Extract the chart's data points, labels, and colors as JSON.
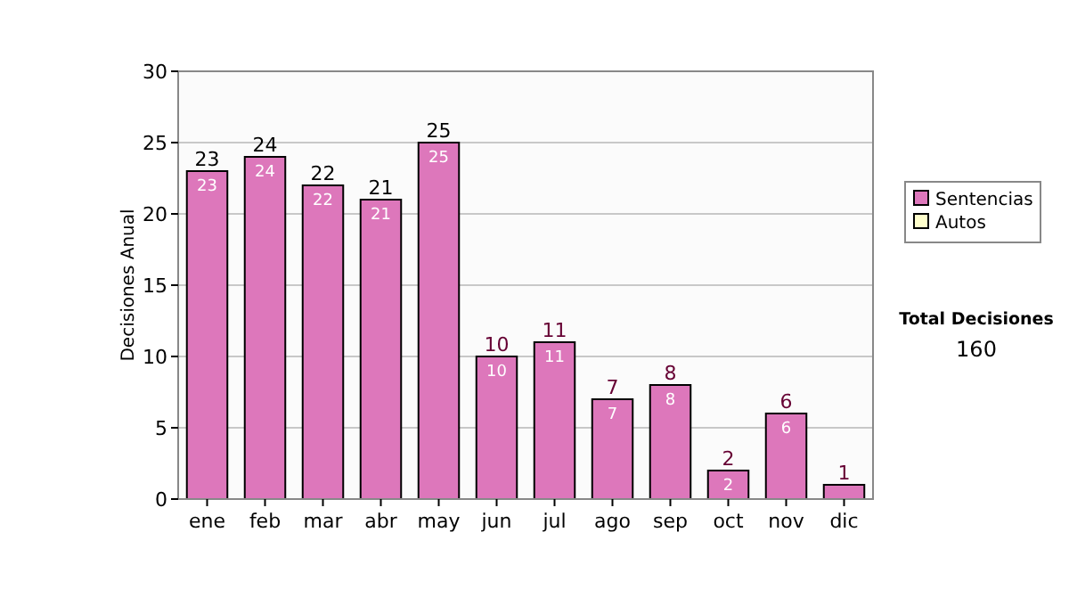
{
  "chart_data": {
    "type": "bar",
    "stacked": true,
    "ylabel": "Decisiones Anual",
    "categories": [
      "ene",
      "feb",
      "mar",
      "abr",
      "may",
      "jun",
      "jul",
      "ago",
      "sep",
      "oct",
      "nov",
      "dic"
    ],
    "series": [
      {
        "name": "Sentencias",
        "color": "#dd77bb",
        "values": [
          23,
          24,
          22,
          21,
          25,
          10,
          11,
          7,
          8,
          2,
          6,
          1
        ],
        "value_labels": [
          "23",
          "24",
          "22",
          "21",
          "25",
          "10",
          "11",
          "7",
          "8",
          "2",
          "6",
          null
        ]
      },
      {
        "name": "Autos",
        "color": "#ffffcc",
        "values": [
          0,
          0,
          0,
          0,
          0,
          0,
          0,
          0,
          0,
          0,
          0,
          0
        ]
      }
    ],
    "totals": [
      "23",
      "24",
      "22",
      "21",
      "25",
      "10",
      "11",
      "7",
      "8",
      "2",
      "6",
      "1"
    ],
    "ylim": [
      0,
      30
    ],
    "yticks": [
      0,
      5,
      10,
      15,
      20,
      25,
      30
    ],
    "grid": "y",
    "legend": "right",
    "annotations": [
      "Total Decisiones",
      "160"
    ]
  }
}
